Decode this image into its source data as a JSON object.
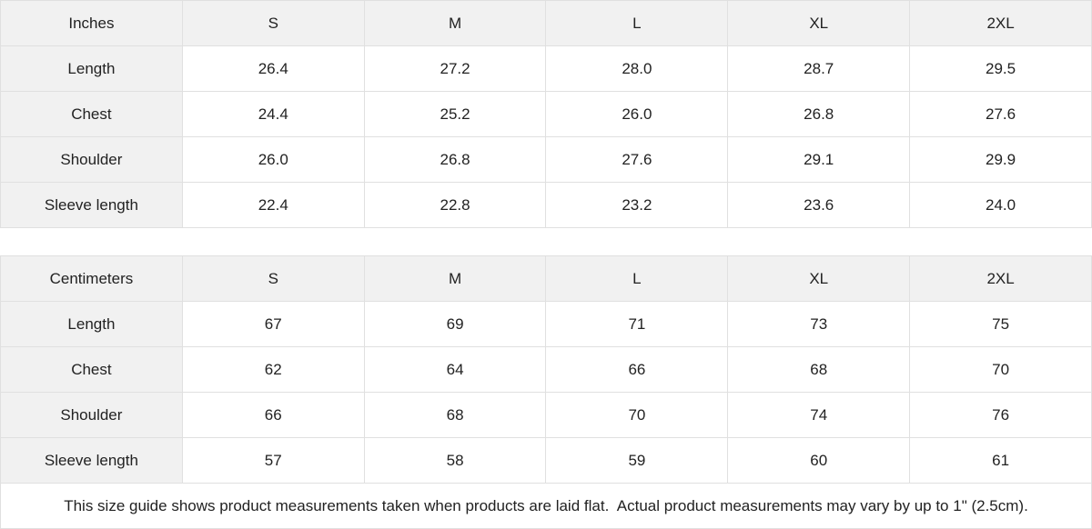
{
  "colors": {
    "header_bg": "#f1f1f1",
    "cell_bg": "#ffffff",
    "border": "#e0e0e0",
    "text": "#222222"
  },
  "tables": [
    {
      "unit_label": "Inches",
      "sizes": [
        "S",
        "M",
        "L",
        "XL",
        "2XL"
      ],
      "rows": [
        {
          "label": "Length",
          "values": [
            "26.4",
            "27.2",
            "28.0",
            "28.7",
            "29.5"
          ]
        },
        {
          "label": "Chest",
          "values": [
            "24.4",
            "25.2",
            "26.0",
            "26.8",
            "27.6"
          ]
        },
        {
          "label": "Shoulder",
          "values": [
            "26.0",
            "26.8",
            "27.6",
            "29.1",
            "29.9"
          ]
        },
        {
          "label": "Sleeve length",
          "values": [
            "22.4",
            "22.8",
            "23.2",
            "23.6",
            "24.0"
          ]
        }
      ]
    },
    {
      "unit_label": "Centimeters",
      "sizes": [
        "S",
        "M",
        "L",
        "XL",
        "2XL"
      ],
      "rows": [
        {
          "label": "Length",
          "values": [
            "67",
            "69",
            "71",
            "73",
            "75"
          ]
        },
        {
          "label": "Chest",
          "values": [
            "62",
            "64",
            "66",
            "68",
            "70"
          ]
        },
        {
          "label": "Shoulder",
          "values": [
            "66",
            "68",
            "70",
            "74",
            "76"
          ]
        },
        {
          "label": "Sleeve length",
          "values": [
            "57",
            "58",
            "59",
            "60",
            "61"
          ]
        }
      ]
    }
  ],
  "footer_note": "This size guide shows product measurements taken when products are laid flat.  Actual product measurements may vary by up to 1\" (2.5cm)."
}
